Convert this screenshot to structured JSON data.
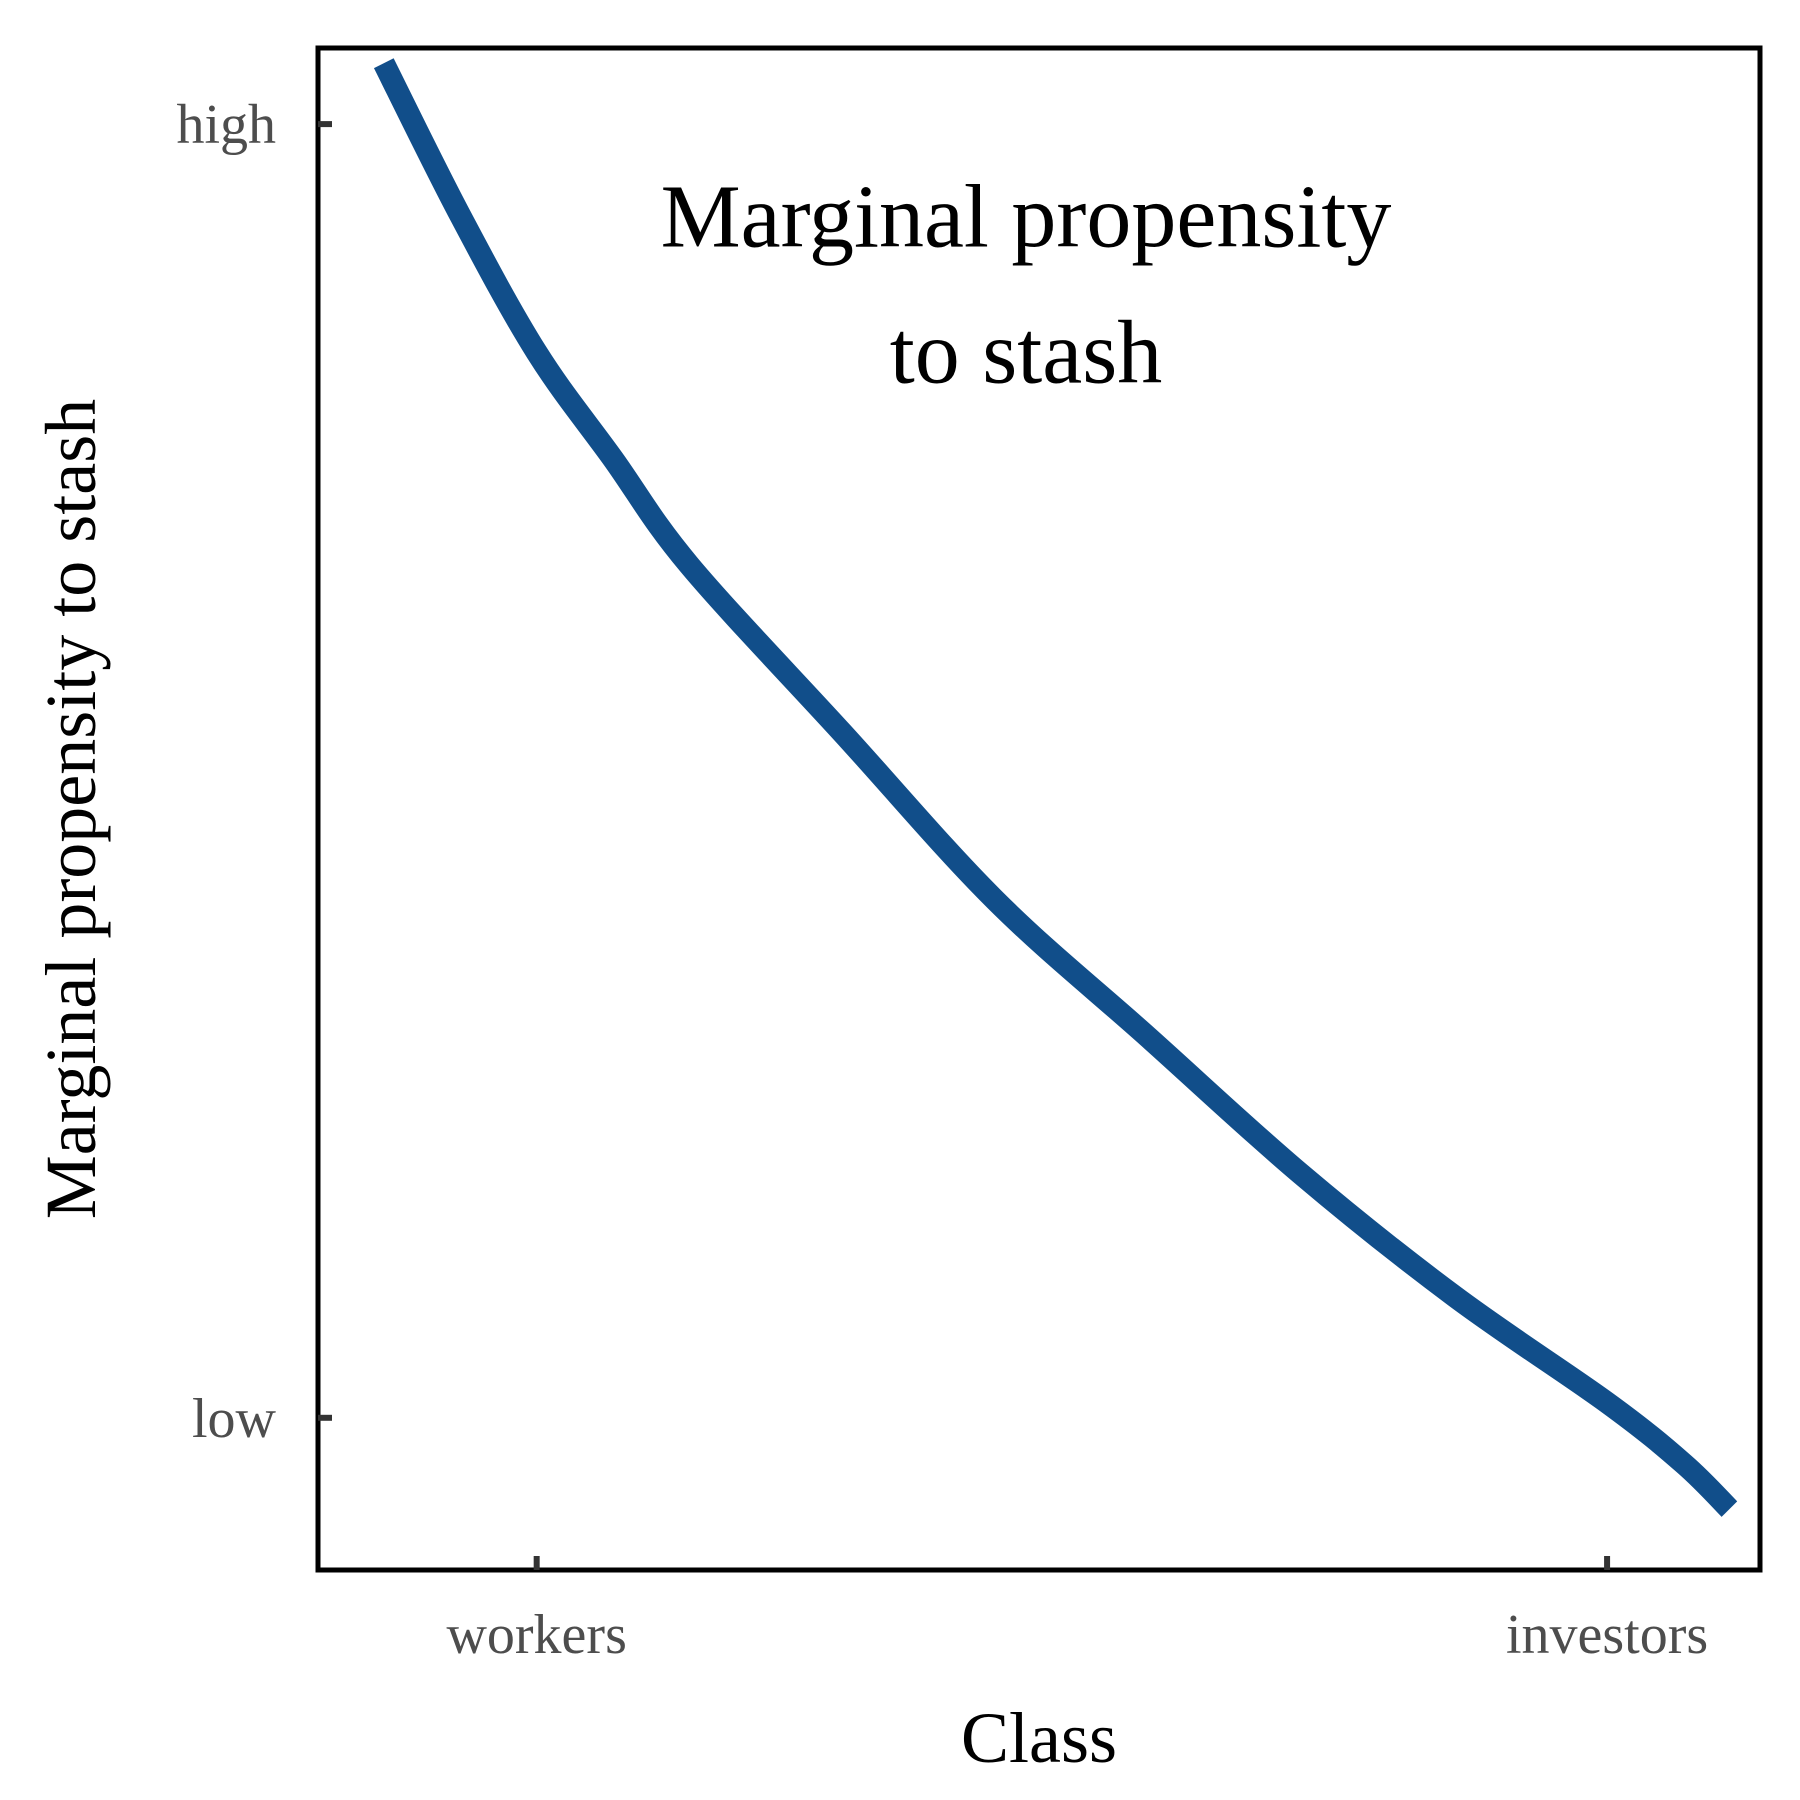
{
  "chart_data": {
    "type": "line",
    "xlabel": "Class",
    "ylabel": "Marginal propensity to stash",
    "x_ticks": [
      {
        "label": "workers",
        "value": 0.2
      },
      {
        "label": "investors",
        "value": 0.9
      }
    ],
    "y_ticks": [
      {
        "label": "high",
        "value": 0.95
      },
      {
        "label": "low",
        "value": 0.1
      }
    ],
    "xlim": [
      0.057,
      1.0
    ],
    "ylim": [
      0.0,
      1.0
    ],
    "series": [
      {
        "color": "#114e8a",
        "x": [
          0.1,
          0.15,
          0.2,
          0.25,
          0.3,
          0.4,
          0.5,
          0.6,
          0.7,
          0.8,
          0.9,
          0.95,
          0.98
        ],
        "y": [
          0.99,
          0.89,
          0.8,
          0.73,
          0.66,
          0.55,
          0.44,
          0.35,
          0.26,
          0.18,
          0.11,
          0.07,
          0.04
        ]
      }
    ],
    "annotations": [
      {
        "lines": [
          "Marginal propensity",
          "to stash"
        ],
        "x": 0.52,
        "y": 0.83
      }
    ],
    "grid": false,
    "legend": "none"
  }
}
